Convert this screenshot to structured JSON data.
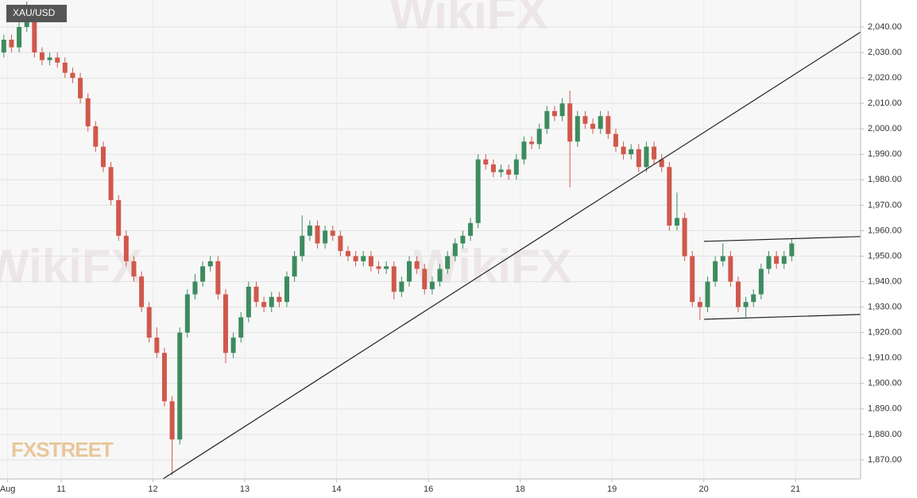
{
  "chart_data": {
    "type": "candlestick",
    "title": "XAU/USD",
    "logo": "FXSTREET",
    "watermark": "WikiFX",
    "up_color": "#3d8b5f",
    "down_color": "#d0584c",
    "grid": true,
    "xlim": [
      8,
      233
    ],
    "ylim": [
      1862.5,
      2050.6
    ],
    "xticks": [
      {
        "value": 10,
        "label": "Aug"
      },
      {
        "value": 24,
        "label": "11"
      },
      {
        "value": 48,
        "label": "12"
      },
      {
        "value": 72,
        "label": "13"
      },
      {
        "value": 96,
        "label": "14"
      },
      {
        "value": 120,
        "label": "16"
      },
      {
        "value": 144,
        "label": "18"
      },
      {
        "value": 168,
        "label": "19"
      },
      {
        "value": 192,
        "label": "20"
      },
      {
        "value": 216,
        "label": "21"
      }
    ],
    "yticks": [
      {
        "value": 1870,
        "label": "1,870.00"
      },
      {
        "value": 1880,
        "label": "1,880.00"
      },
      {
        "value": 1890,
        "label": "1,890.00"
      },
      {
        "value": 1900,
        "label": "1,900.00"
      },
      {
        "value": 1910,
        "label": "1,910.00"
      },
      {
        "value": 1920,
        "label": "1,920.00"
      },
      {
        "value": 1930,
        "label": "1,930.00"
      },
      {
        "value": 1940,
        "label": "1,940.00"
      },
      {
        "value": 1950,
        "label": "1,950.00"
      },
      {
        "value": 1960,
        "label": "1,960.00"
      },
      {
        "value": 1970,
        "label": "1,970.00"
      },
      {
        "value": 1980,
        "label": "1,980.00"
      },
      {
        "value": 1990,
        "label": "1,990.00"
      },
      {
        "value": 2000,
        "label": "2,000.00"
      },
      {
        "value": 2010,
        "label": "2,010.00"
      },
      {
        "value": 2020,
        "label": "2,020.00"
      },
      {
        "value": 2030,
        "label": "2,030.00"
      },
      {
        "value": 2040,
        "label": "2,040.00"
      }
    ],
    "x": [
      9,
      11,
      13,
      15,
      17,
      19,
      21,
      23,
      25,
      27,
      29,
      31,
      33,
      35,
      37,
      39,
      41,
      43,
      45,
      47,
      49,
      51,
      53,
      55,
      57,
      59,
      61,
      63,
      65,
      67,
      69,
      71,
      73,
      75,
      77,
      79,
      81,
      83,
      85,
      87,
      89,
      91,
      93,
      95,
      97,
      99,
      101,
      103,
      105,
      107,
      109,
      111,
      113,
      115,
      117,
      119,
      121,
      123,
      125,
      127,
      129,
      131,
      133,
      135,
      137,
      139,
      141,
      143,
      145,
      147,
      149,
      151,
      153,
      155,
      157,
      159,
      161,
      163,
      165,
      167,
      169,
      171,
      173,
      175,
      177,
      179,
      181,
      183,
      185,
      187,
      189,
      191,
      193,
      195,
      197,
      199,
      201,
      203,
      205,
      207,
      209,
      211,
      213,
      215
    ],
    "open": [
      2030,
      2035,
      2032,
      2040,
      2045,
      2030,
      2027,
      2028,
      2026,
      2022,
      2020,
      2012,
      2001,
      1993,
      1985,
      1972,
      1958,
      1948,
      1942,
      1930,
      1918,
      1912,
      1893,
      1878,
      1920,
      1935,
      1940,
      1946,
      1948,
      1935,
      1912,
      1918,
      1926,
      1938,
      1932,
      1930,
      1934,
      1932,
      1942,
      1950,
      1958,
      1962,
      1955,
      1960,
      1958,
      1952,
      1950,
      1948,
      1950,
      1946,
      1945,
      1946,
      1936,
      1940,
      1948,
      1945,
      1937,
      1940,
      1945,
      1950,
      1955,
      1958,
      1963,
      1988,
      1986,
      1983,
      1984,
      1982,
      1988,
      1995,
      1994,
      2000,
      2007,
      2005,
      2010,
      1995,
      2005,
      2002,
      2000,
      2005,
      1998,
      1993,
      1990,
      1992,
      1985,
      1993,
      1988,
      1985,
      1962,
      1965,
      1950,
      1932,
      1930,
      1940,
      1948,
      1950,
      1940,
      1930,
      1932,
      1935,
      1945,
      1950,
      1947,
      1950
    ],
    "high": [
      2037,
      2037,
      2042,
      2050,
      2047,
      2032,
      2030,
      2030,
      2028,
      2024,
      2022,
      2014,
      2003,
      1995,
      1987,
      1974,
      1960,
      1950,
      1944,
      1932,
      1922,
      1914,
      1895,
      1922,
      1937,
      1943,
      1948,
      1950,
      1950,
      1937,
      1920,
      1928,
      1940,
      1940,
      1934,
      1936,
      1936,
      1944,
      1952,
      1966,
      1964,
      1964,
      1962,
      1962,
      1960,
      1954,
      1952,
      1952,
      1952,
      1948,
      1948,
      1948,
      1942,
      1950,
      1950,
      1947,
      1942,
      1947,
      1952,
      1957,
      1960,
      1965,
      1990,
      1990,
      1988,
      1986,
      1986,
      1990,
      1997,
      1997,
      2002,
      2009,
      2009,
      2012,
      2015,
      2007,
      2007,
      2004,
      2007,
      2007,
      2000,
      1995,
      1994,
      1994,
      1995,
      1995,
      1990,
      1987,
      1975,
      1967,
      1952,
      1934,
      1942,
      1950,
      1955,
      1952,
      1942,
      1934,
      1937,
      1947,
      1952,
      1952,
      1952,
      1957
    ],
    "low": [
      2028,
      2030,
      2030,
      2038,
      2028,
      2025,
      2025,
      2024,
      2020,
      2018,
      2010,
      1999,
      1991,
      1983,
      1970,
      1956,
      1946,
      1940,
      1928,
      1916,
      1910,
      1891,
      1864,
      1876,
      1918,
      1933,
      1938,
      1944,
      1933,
      1908,
      1910,
      1916,
      1924,
      1930,
      1928,
      1928,
      1930,
      1930,
      1940,
      1948,
      1956,
      1953,
      1953,
      1956,
      1950,
      1948,
      1946,
      1946,
      1944,
      1943,
      1943,
      1933,
      1934,
      1938,
      1943,
      1935,
      1935,
      1938,
      1943,
      1948,
      1953,
      1956,
      1961,
      1984,
      1981,
      1981,
      1980,
      1980,
      1986,
      1992,
      1992,
      1998,
      2003,
      2003,
      1977,
      1993,
      2000,
      1998,
      1998,
      1996,
      1991,
      1988,
      1988,
      1983,
      1983,
      1986,
      1983,
      1960,
      1960,
      1948,
      1930,
      1925,
      1928,
      1938,
      1946,
      1938,
      1928,
      1926,
      1930,
      1933,
      1943,
      1945,
      1945,
      1948
    ],
    "close": [
      2035,
      2032,
      2040,
      2045,
      2030,
      2027,
      2028,
      2026,
      2022,
      2020,
      2012,
      2001,
      1993,
      1985,
      1972,
      1958,
      1948,
      1942,
      1930,
      1918,
      1912,
      1893,
      1878,
      1920,
      1935,
      1940,
      1946,
      1948,
      1935,
      1912,
      1918,
      1926,
      1938,
      1932,
      1930,
      1934,
      1932,
      1942,
      1950,
      1958,
      1962,
      1955,
      1960,
      1958,
      1952,
      1950,
      1948,
      1950,
      1946,
      1945,
      1946,
      1936,
      1940,
      1948,
      1945,
      1937,
      1940,
      1945,
      1950,
      1955,
      1958,
      1963,
      1988,
      1986,
      1983,
      1984,
      1982,
      1988,
      1995,
      1994,
      2000,
      2007,
      2005,
      2010,
      1995,
      2005,
      2002,
      2000,
      2005,
      1998,
      1993,
      1990,
      1992,
      1985,
      1993,
      1988,
      1985,
      1962,
      1965,
      1950,
      1932,
      1930,
      1940,
      1948,
      1950,
      1940,
      1930,
      1932,
      1935,
      1945,
      1950,
      1947,
      1950,
      1955
    ],
    "trendlines": [
      {
        "x": [
          50.6,
          233
        ],
        "y": [
          1862.5,
          2038
        ]
      },
      {
        "x": [
          192.1,
          233
        ],
        "y": [
          1955.8,
          1957.7
        ]
      },
      {
        "x": [
          192.1,
          233
        ],
        "y": [
          1925.2,
          1927.1
        ]
      }
    ]
  }
}
